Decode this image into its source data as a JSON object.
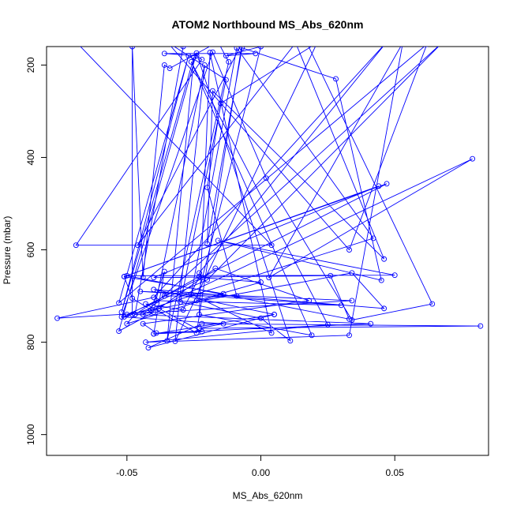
{
  "chart_data": {
    "type": "line",
    "title": "ATOM2 Northbound MS_Abs_620nm",
    "xlabel": "MS_Abs_620nm",
    "ylabel": "Pressure (mbar)",
    "xlim": [
      -0.08,
      0.085
    ],
    "ylim": [
      1045,
      160
    ],
    "y_reversed": true,
    "x_ticks": [
      -0.05,
      0.0,
      0.05
    ],
    "x_tick_labels": [
      "-0.05",
      "0.00",
      "0.05"
    ],
    "y_ticks": [
      200,
      400,
      600,
      800,
      1000
    ],
    "y_tick_labels": [
      "200",
      "400",
      "600",
      "800",
      "1000"
    ],
    "grid": false,
    "line_color": "#0000ff",
    "marker": "open-circle",
    "series": [
      {
        "points": [
          [
            -0.048,
            740
          ],
          [
            -0.048,
            160
          ],
          [
            -0.044,
            660
          ],
          [
            -0.036,
            200
          ],
          [
            -0.034,
            207
          ],
          [
            -0.016,
            150
          ],
          [
            -0.012,
            193
          ],
          [
            -0.035,
            797
          ],
          [
            -0.025,
            183
          ],
          [
            -0.052,
            735
          ],
          [
            -0.027,
            180
          ],
          [
            -0.053,
            715
          ],
          [
            0.062,
            155
          ],
          [
            0.033,
            600
          ],
          [
            -0.035,
            150
          ],
          [
            -0.013,
            232
          ],
          [
            -0.03,
            713
          ],
          [
            0.0,
            748
          ],
          [
            0.011,
            797
          ],
          [
            -0.024,
            174
          ],
          [
            -0.053,
            776
          ],
          [
            -0.04,
            735
          ],
          [
            -0.021,
            200
          ],
          [
            -0.032,
            798
          ],
          [
            0.021,
            152
          ],
          [
            -0.015,
            283
          ],
          [
            -0.02,
            465
          ],
          [
            -0.009,
            700
          ],
          [
            -0.036,
            700
          ],
          [
            -0.023,
            658
          ],
          [
            -0.029,
            730
          ],
          [
            -0.043,
            717
          ],
          [
            -0.024,
            780
          ],
          [
            -0.007,
            152
          ],
          [
            -0.046,
            590
          ],
          [
            0.013,
            152
          ],
          [
            0.046,
            620
          ],
          [
            -0.018,
            256
          ],
          [
            -0.02,
            587
          ],
          [
            -0.007,
            163
          ],
          [
            0.028,
            230
          ],
          [
            0.045,
            666
          ],
          [
            -0.016,
            580
          ],
          [
            0.05,
            655
          ],
          [
            -0.05,
            656
          ],
          [
            0.033,
            750
          ],
          [
            0.026,
            656
          ],
          [
            -0.04,
            660
          ],
          [
            0.044,
            462
          ],
          [
            -0.051,
            658
          ],
          [
            0.047,
            457
          ],
          [
            -0.051,
            745
          ],
          [
            0.042,
            575
          ],
          [
            -0.009,
            163
          ],
          [
            -0.026,
            696
          ],
          [
            0.004,
            780
          ],
          [
            -0.019,
            173
          ],
          [
            -0.023,
            740
          ],
          [
            0.019,
            785
          ],
          [
            -0.026,
            193
          ],
          [
            0.025,
            762
          ],
          [
            -0.043,
            800
          ],
          [
            0.033,
            785
          ],
          [
            0.053,
            152
          ],
          [
            0.003,
            660
          ],
          [
            0.079,
            403
          ],
          [
            -0.044,
            740
          ],
          [
            0.068,
            150
          ],
          [
            -0.02,
            665
          ],
          [
            -0.05,
            740
          ],
          [
            0.034,
            650
          ],
          [
            0.046,
            727
          ],
          [
            -0.04,
            686
          ],
          [
            0.005,
            740
          ],
          [
            -0.042,
            812
          ],
          [
            -0.022,
            760
          ],
          [
            0.082,
            765
          ],
          [
            -0.023,
            770
          ],
          [
            -0.014,
            760
          ],
          [
            -0.052,
            745
          ],
          [
            -0.018,
            172
          ],
          [
            0.002,
            445
          ],
          [
            0.034,
            752
          ],
          [
            0.064,
            717
          ],
          [
            0.017,
            150
          ],
          [
            -0.029,
            160
          ],
          [
            -0.047,
            740
          ],
          [
            -0.05,
            760
          ],
          [
            -0.014,
            695
          ],
          [
            -0.051,
            658
          ],
          [
            -0.048,
            705
          ],
          [
            -0.041,
            730
          ],
          [
            -0.036,
            647
          ],
          [
            -0.04,
            782
          ],
          [
            0.005,
            740
          ],
          [
            -0.04,
            782
          ],
          [
            -0.022,
            777
          ],
          [
            -0.038,
            727
          ],
          [
            -0.017,
            640
          ],
          [
            0.018,
            710
          ],
          [
            -0.044,
            760
          ],
          [
            -0.039,
            780
          ],
          [
            0.041,
            760
          ],
          [
            -0.047,
            740
          ],
          [
            -0.039,
            710
          ],
          [
            0.03,
            720
          ],
          [
            -0.045,
            690
          ],
          [
            0.034,
            710
          ],
          [
            -0.076,
            748
          ],
          [
            -0.04,
            703
          ],
          [
            0.047,
            150
          ],
          [
            -0.023,
            650
          ],
          [
            -0.022,
            660
          ],
          [
            0.0,
            670
          ],
          [
            -0.024,
            710
          ],
          [
            0.0,
            160
          ],
          [
            -0.013,
            180
          ],
          [
            -0.002,
            175
          ],
          [
            -0.036,
            175
          ],
          [
            -0.024,
            180
          ],
          [
            -0.022,
            188
          ],
          [
            -0.069,
            590
          ],
          [
            0.004,
            590
          ],
          [
            -0.069,
            150
          ]
        ]
      }
    ]
  }
}
